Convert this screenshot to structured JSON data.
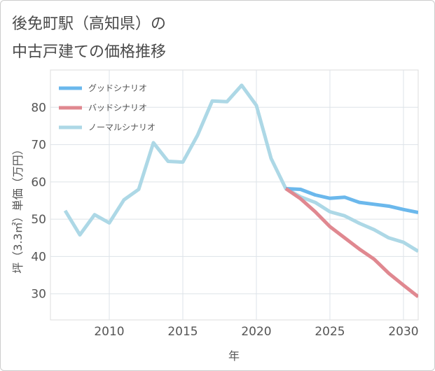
{
  "chart_data": {
    "type": "line",
    "title_line1": "後免町駅（高知県）の",
    "title_line2": "中古戸建ての価格推移",
    "xlabel": "年",
    "ylabel": "坪（3.3㎡）単価（万円）",
    "xlim": [
      2006,
      2031
    ],
    "ylim": [
      23,
      90
    ],
    "x_ticks": [
      2010,
      2015,
      2020,
      2025,
      2030
    ],
    "y_ticks": [
      30,
      40,
      50,
      60,
      70,
      80
    ],
    "legend_position": "top-left",
    "series": [
      {
        "name": "グッドシナリオ",
        "color": "#6bb8ec",
        "x": [
          2022,
          2023,
          2024,
          2025,
          2026,
          2027,
          2028,
          2029,
          2030,
          2031
        ],
        "y": [
          58.2,
          58.0,
          56.5,
          55.6,
          55.9,
          54.5,
          54.0,
          53.5,
          52.6,
          51.8
        ]
      },
      {
        "name": "バッドシナリオ",
        "color": "#e08890",
        "x": [
          2022,
          2023,
          2024,
          2025,
          2026,
          2027,
          2028,
          2029,
          2030,
          2031
        ],
        "y": [
          58.2,
          55.5,
          52.0,
          48.0,
          45.0,
          42.0,
          39.3,
          35.5,
          32.3,
          29.2
        ]
      },
      {
        "name": "ノーマルシナリオ",
        "color": "#add8e6",
        "x": [
          2007,
          2008,
          2009,
          2010,
          2011,
          2012,
          2013,
          2014,
          2015,
          2016,
          2017,
          2018,
          2019,
          2020,
          2021,
          2022,
          2023,
          2024,
          2025,
          2026,
          2027,
          2028,
          2029,
          2030,
          2031
        ],
        "y": [
          52.3,
          45.8,
          51.2,
          49.0,
          55.2,
          58.0,
          70.5,
          65.5,
          65.3,
          72.5,
          81.7,
          81.5,
          85.9,
          80.5,
          66.3,
          58.2,
          56.0,
          54.5,
          52.0,
          50.9,
          48.9,
          47.2,
          45.0,
          43.8,
          41.4
        ]
      }
    ]
  }
}
